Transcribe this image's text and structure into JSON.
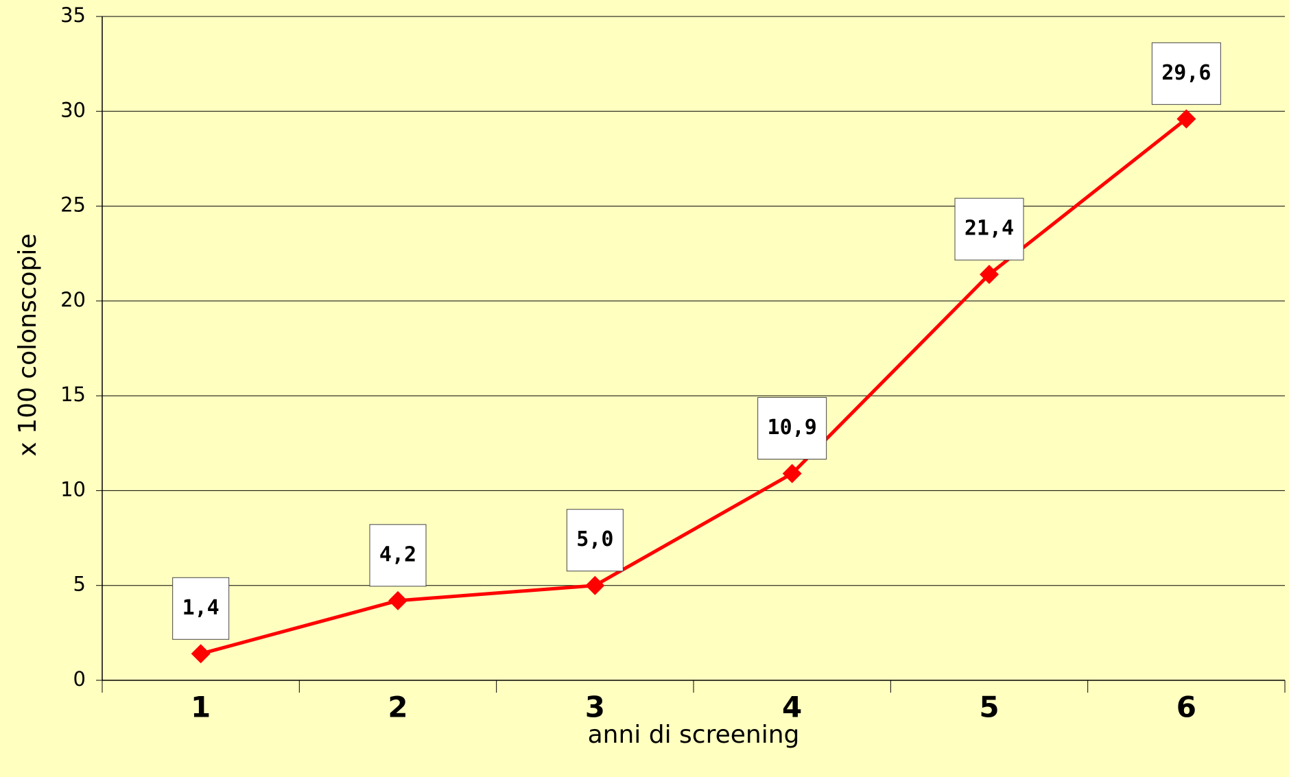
{
  "chart_data": {
    "type": "line",
    "categories": [
      "1",
      "2",
      "3",
      "4",
      "5",
      "6"
    ],
    "series": [
      {
        "name": "colonscopie",
        "color": "#ff0000",
        "values": [
          1.4,
          4.2,
          5.0,
          10.9,
          21.4,
          29.6
        ],
        "value_labels": [
          "1,4",
          "4,2",
          "5,0",
          "10,9",
          "21,4",
          "29,6"
        ]
      }
    ],
    "xlabel": "anni di screening",
    "ylabel": "x 100 colonscopie",
    "ylim": [
      0,
      35
    ],
    "yticks": [
      0,
      5,
      10,
      15,
      20,
      25,
      30,
      35
    ],
    "grid": true
  }
}
